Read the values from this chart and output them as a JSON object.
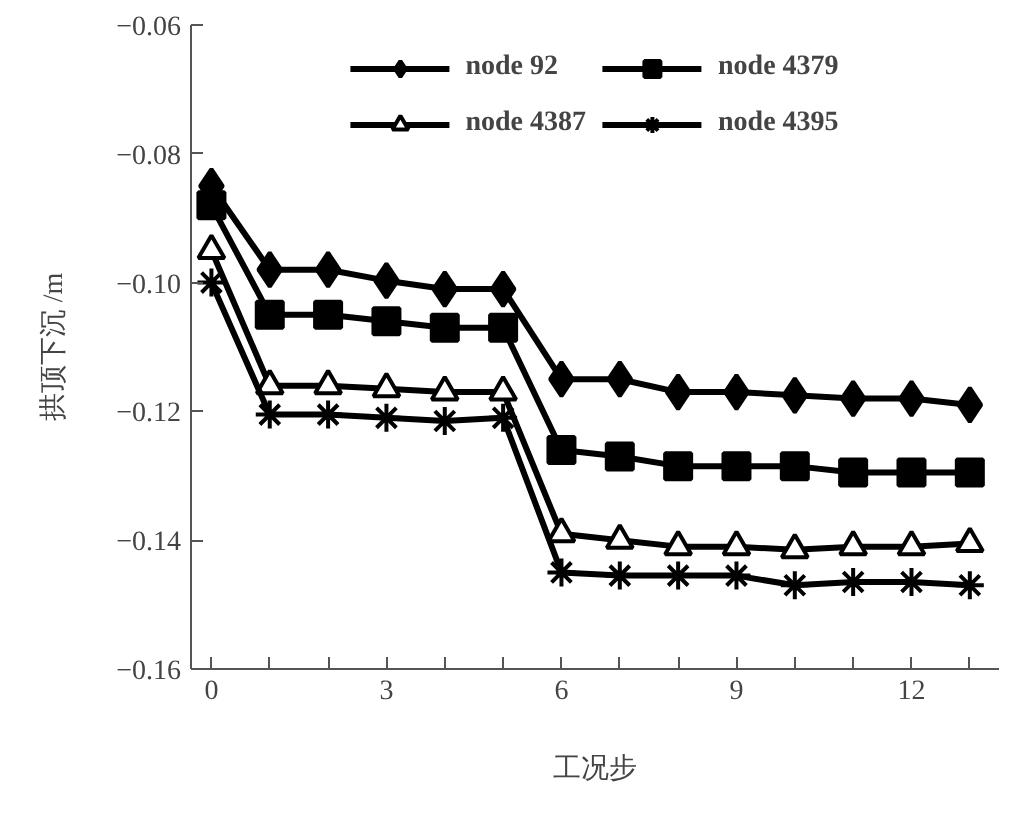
{
  "chart_data": {
    "type": "line",
    "xlabel": "工况步",
    "ylabel": "拱顶下沉 /m",
    "x": [
      0,
      1,
      2,
      3,
      4,
      5,
      6,
      7,
      8,
      9,
      10,
      11,
      12,
      13
    ],
    "series": [
      {
        "name": "node 92",
        "color": "#000000",
        "marker": "diamond",
        "values": [
          -0.085,
          -0.098,
          -0.098,
          -0.0997,
          -0.101,
          -0.101,
          -0.115,
          -0.115,
          -0.117,
          -0.117,
          -0.1175,
          -0.118,
          -0.118,
          -0.119
        ]
      },
      {
        "name": "node 4379",
        "color": "#000000",
        "marker": "square",
        "values": [
          -0.088,
          -0.105,
          -0.105,
          -0.106,
          -0.107,
          -0.107,
          -0.126,
          -0.127,
          -0.1285,
          -0.1285,
          -0.1285,
          -0.1295,
          -0.1295,
          -0.1295
        ]
      },
      {
        "name": "node 4387",
        "color": "#000000",
        "marker": "triangle",
        "values": [
          -0.095,
          -0.116,
          -0.116,
          -0.1165,
          -0.117,
          -0.117,
          -0.139,
          -0.14,
          -0.141,
          -0.141,
          -0.1415,
          -0.141,
          -0.141,
          -0.1405
        ]
      },
      {
        "name": "node 4395",
        "color": "#000000",
        "marker": "cross",
        "values": [
          -0.1,
          -0.1205,
          -0.1205,
          -0.121,
          -0.1215,
          -0.121,
          -0.145,
          -0.1455,
          -0.1455,
          -0.1455,
          -0.147,
          -0.1465,
          -0.1465,
          -0.147
        ]
      }
    ],
    "xlim": [
      -0.35,
      13.5
    ],
    "xticks": [
      0,
      {
        "value": 1,
        "label": null
      },
      {
        "value": 2,
        "label": null
      },
      3,
      {
        "value": 4,
        "label": null
      },
      {
        "value": 5,
        "label": null
      },
      6,
      {
        "value": 7,
        "label": null
      },
      {
        "value": 8,
        "label": null
      },
      9,
      {
        "value": 10,
        "label": null
      },
      {
        "value": 11,
        "label": null
      },
      12,
      {
        "value": 13,
        "label": null
      }
    ],
    "ylim": [
      -0.16,
      -0.06
    ],
    "yticks": [
      {
        "value": -0.16,
        "label": "−0.16"
      },
      {
        "value": -0.14,
        "label": "−0.14"
      },
      {
        "value": -0.12,
        "label": "−0.12"
      },
      {
        "value": -0.1,
        "label": "−0.10"
      },
      {
        "value": -0.08,
        "label": "−0.08"
      },
      {
        "value": -0.06,
        "label": "−0.06"
      }
    ],
    "grid": false,
    "legend": "top",
    "line_style": "solid"
  }
}
